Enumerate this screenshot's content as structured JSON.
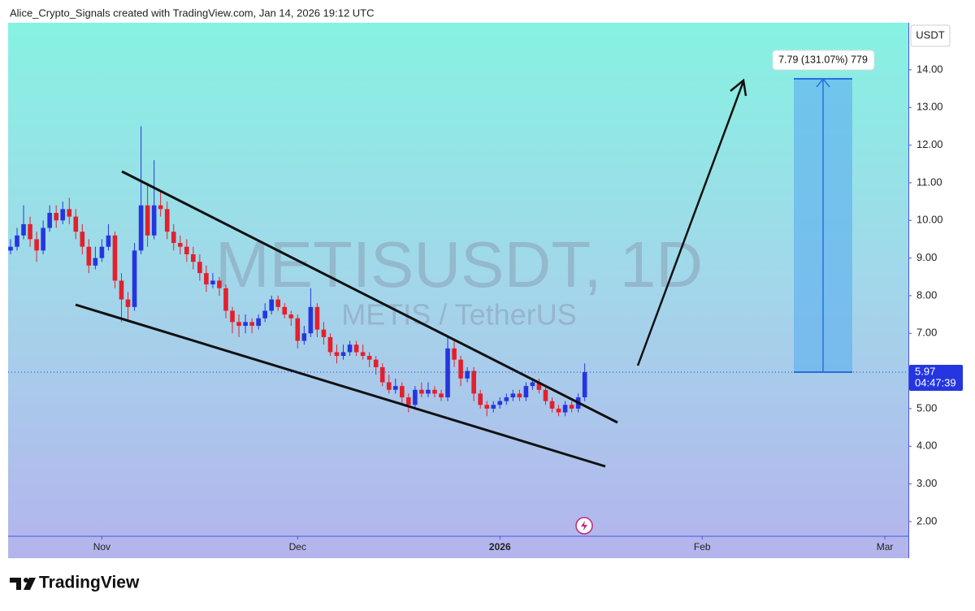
{
  "header": {
    "text": "Alice_Crypto_Signals created with TradingView.com, Jan 14, 2026 19:12 UTC"
  },
  "chart_data": {
    "type": "candlestick",
    "title": "METISUSDT, 1D",
    "subtitle": "METIS / TetherUS",
    "y_axis_unit": "USDT",
    "colors": {
      "up": "#2536e0",
      "down": "#e3202c"
    },
    "open": [
      9.2,
      9.3,
      9.6,
      9.9,
      9.5,
      9.2,
      9.8,
      10.2,
      10.0,
      10.3,
      10.1,
      9.7,
      9.3,
      8.8,
      9.0,
      9.3,
      9.6,
      8.4,
      7.9,
      7.7,
      9.2,
      10.4,
      9.6,
      10.4,
      10.3,
      9.7,
      9.4,
      9.3,
      9.1,
      8.9,
      8.6,
      8.3,
      8.4,
      8.2,
      7.6,
      7.3,
      7.2,
      7.3,
      7.2,
      7.4,
      7.6,
      7.9,
      7.7,
      7.5,
      7.4,
      6.8,
      7.0,
      7.7,
      7.1,
      6.9,
      6.5,
      6.4,
      6.5,
      6.7,
      6.5,
      6.4,
      6.3,
      6.1,
      5.7,
      5.5,
      5.6,
      5.3,
      5.1,
      5.5,
      5.4,
      5.5,
      5.4,
      5.3,
      6.6,
      6.3,
      5.8,
      6.0,
      5.4,
      5.1,
      5.0,
      5.1,
      5.2,
      5.3,
      5.4,
      5.3,
      5.6,
      5.7,
      5.5,
      5.2,
      5.0,
      4.9,
      5.1,
      5.0,
      5.3
    ],
    "high": [
      9.5,
      9.8,
      10.4,
      10.1,
      9.7,
      10.0,
      10.4,
      10.4,
      10.5,
      10.6,
      10.3,
      9.9,
      9.5,
      9.3,
      9.5,
      9.9,
      9.7,
      8.6,
      8.1,
      9.4,
      12.5,
      11.0,
      11.6,
      10.8,
      10.5,
      9.9,
      9.6,
      9.5,
      9.3,
      9.1,
      8.8,
      8.6,
      8.5,
      8.3,
      7.7,
      7.5,
      7.5,
      7.4,
      7.5,
      7.8,
      8.0,
      8.0,
      7.8,
      7.6,
      7.5,
      7.2,
      8.2,
      7.8,
      7.3,
      7.0,
      6.7,
      6.7,
      6.8,
      6.8,
      6.7,
      6.5,
      6.4,
      6.2,
      5.9,
      5.8,
      5.7,
      5.4,
      5.6,
      5.7,
      5.7,
      5.6,
      5.5,
      6.9,
      6.8,
      6.4,
      6.1,
      6.1,
      5.5,
      5.2,
      5.2,
      5.3,
      5.4,
      5.5,
      5.5,
      5.7,
      5.8,
      5.8,
      5.6,
      5.3,
      5.1,
      5.2,
      5.2,
      5.4,
      6.2
    ],
    "low": [
      9.1,
      9.2,
      9.5,
      9.3,
      8.9,
      9.1,
      9.7,
      9.8,
      9.9,
      9.9,
      9.5,
      9.1,
      8.6,
      8.7,
      8.9,
      9.2,
      8.2,
      7.3,
      7.3,
      7.6,
      9.1,
      9.3,
      9.5,
      10.1,
      9.5,
      9.2,
      9.1,
      8.9,
      8.7,
      8.4,
      8.1,
      8.2,
      8.0,
      7.4,
      7.0,
      6.9,
      7.0,
      7.0,
      7.1,
      7.3,
      7.5,
      7.6,
      7.4,
      7.2,
      6.6,
      6.7,
      6.9,
      6.9,
      6.7,
      6.4,
      6.2,
      6.3,
      6.4,
      6.4,
      6.3,
      6.1,
      5.9,
      5.6,
      5.4,
      5.4,
      5.1,
      4.9,
      5.0,
      5.3,
      5.3,
      5.3,
      5.2,
      5.2,
      6.1,
      5.6,
      5.7,
      5.2,
      5.0,
      4.8,
      4.9,
      5.0,
      5.1,
      5.2,
      5.2,
      5.2,
      5.5,
      5.4,
      5.1,
      4.9,
      4.8,
      4.8,
      4.9,
      4.9,
      5.2
    ],
    "close": [
      9.3,
      9.6,
      9.9,
      9.5,
      9.2,
      9.8,
      10.2,
      10.0,
      10.3,
      10.1,
      9.7,
      9.3,
      8.8,
      9.0,
      9.3,
      9.6,
      8.4,
      7.9,
      7.7,
      9.2,
      10.4,
      9.6,
      10.4,
      10.3,
      9.7,
      9.4,
      9.3,
      9.1,
      8.9,
      8.6,
      8.3,
      8.4,
      8.2,
      7.6,
      7.3,
      7.2,
      7.3,
      7.2,
      7.4,
      7.6,
      7.9,
      7.7,
      7.5,
      7.4,
      6.8,
      7.0,
      7.7,
      7.1,
      6.9,
      6.5,
      6.4,
      6.5,
      6.7,
      6.5,
      6.4,
      6.3,
      6.1,
      5.7,
      5.5,
      5.6,
      5.3,
      5.1,
      5.5,
      5.4,
      5.5,
      5.4,
      5.3,
      6.6,
      6.3,
      5.8,
      6.0,
      5.4,
      5.1,
      5.0,
      5.1,
      5.2,
      5.3,
      5.4,
      5.3,
      5.6,
      5.7,
      5.5,
      5.2,
      5.0,
      4.9,
      5.1,
      5.0,
      5.3,
      5.97
    ],
    "xlim": [
      -0.37,
      137.6
    ],
    "xticks": [
      {
        "value": 14,
        "label": "Nov"
      },
      {
        "value": 44,
        "label": "Dec"
      },
      {
        "value": 75,
        "label": "2026"
      },
      {
        "value": 106,
        "label": "Feb"
      },
      {
        "value": 134,
        "label": "Mar"
      }
    ],
    "ylim": [
      1.61,
      15.25
    ],
    "yticks": [
      {
        "value": 2,
        "label": "2.00"
      },
      {
        "value": 3,
        "label": "3.00"
      },
      {
        "value": 4,
        "label": "4.00"
      },
      {
        "value": 5,
        "label": "5.00"
      },
      {
        "value": 6,
        "label": "6.00"
      },
      {
        "value": 7,
        "label": "7.00"
      },
      {
        "value": 8,
        "label": "8.00"
      },
      {
        "value": 9,
        "label": "9.00"
      },
      {
        "value": 10,
        "label": "10.00"
      },
      {
        "value": 11,
        "label": "11.00"
      },
      {
        "value": 12,
        "label": "12.00"
      },
      {
        "value": 13,
        "label": "13.00"
      },
      {
        "value": 14,
        "label": "14.00"
      }
    ],
    "last_price": 5.97,
    "countdown": "04:47:39",
    "projection": {
      "label": "7.79 (131.07%) 779",
      "change": 7.79
    }
  },
  "footer": {
    "brand": "TradingView"
  }
}
